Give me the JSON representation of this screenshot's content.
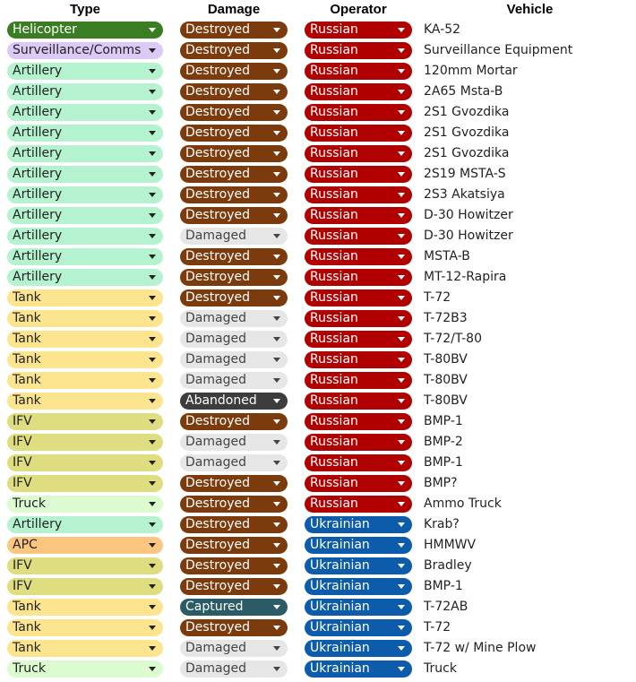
{
  "headers": {
    "type": "Type",
    "damage": "Damage",
    "operator": "Operator",
    "vehicle": "Vehicle"
  },
  "colors": {
    "type": {
      "Helicopter": {
        "bg": "#3a7d23",
        "fg": "#ffffff"
      },
      "Surveillance/Comms": {
        "bg": "#dbc9f6",
        "fg": "#222222"
      },
      "Artillery": {
        "bg": "#b5f3d0",
        "fg": "#222222"
      },
      "Tank": {
        "bg": "#fde58f",
        "fg": "#222222"
      },
      "IFV": {
        "bg": "#dede80",
        "fg": "#222222"
      },
      "Truck": {
        "bg": "#dcfbd0",
        "fg": "#222222"
      },
      "APC": {
        "bg": "#fbc67f",
        "fg": "#222222"
      }
    },
    "damage": {
      "Destroyed": {
        "bg": "#7b3b0c",
        "fg": "#ffffff"
      },
      "Damaged": {
        "bg": "#e6e6e6",
        "fg": "#444444"
      },
      "Abandoned": {
        "bg": "#3d3d3d",
        "fg": "#ffffff"
      },
      "Captured": {
        "bg": "#2a5b66",
        "fg": "#ffffff"
      }
    },
    "operator": {
      "Russian": {
        "bg": "#b00000",
        "fg": "#ffffff"
      },
      "Ukrainian": {
        "bg": "#0d5cab",
        "fg": "#ffffff"
      }
    }
  },
  "rows": [
    {
      "type": "Helicopter",
      "damage": "Destroyed",
      "operator": "Russian",
      "vehicle": "KA-52"
    },
    {
      "type": "Surveillance/Comms",
      "damage": "Destroyed",
      "operator": "Russian",
      "vehicle": "Surveillance Equipment"
    },
    {
      "type": "Artillery",
      "damage": "Destroyed",
      "operator": "Russian",
      "vehicle": "120mm Mortar"
    },
    {
      "type": "Artillery",
      "damage": "Destroyed",
      "operator": "Russian",
      "vehicle": "2A65 Msta-B"
    },
    {
      "type": "Artillery",
      "damage": "Destroyed",
      "operator": "Russian",
      "vehicle": "2S1 Gvozdika"
    },
    {
      "type": "Artillery",
      "damage": "Destroyed",
      "operator": "Russian",
      "vehicle": "2S1 Gvozdika"
    },
    {
      "type": "Artillery",
      "damage": "Destroyed",
      "operator": "Russian",
      "vehicle": "2S1 Gvozdika"
    },
    {
      "type": "Artillery",
      "damage": "Destroyed",
      "operator": "Russian",
      "vehicle": "2S19 MSTA-S"
    },
    {
      "type": "Artillery",
      "damage": "Destroyed",
      "operator": "Russian",
      "vehicle": "2S3 Akatsiya"
    },
    {
      "type": "Artillery",
      "damage": "Destroyed",
      "operator": "Russian",
      "vehicle": "D-30 Howitzer"
    },
    {
      "type": "Artillery",
      "damage": "Damaged",
      "operator": "Russian",
      "vehicle": "D-30 Howitzer"
    },
    {
      "type": "Artillery",
      "damage": "Destroyed",
      "operator": "Russian",
      "vehicle": "MSTA-B"
    },
    {
      "type": "Artillery",
      "damage": "Destroyed",
      "operator": "Russian",
      "vehicle": "MT-12-Rapira"
    },
    {
      "type": "Tank",
      "damage": "Destroyed",
      "operator": "Russian",
      "vehicle": "T-72"
    },
    {
      "type": "Tank",
      "damage": "Damaged",
      "operator": "Russian",
      "vehicle": "T-72B3"
    },
    {
      "type": "Tank",
      "damage": "Damaged",
      "operator": "Russian",
      "vehicle": "T-72/T-80"
    },
    {
      "type": "Tank",
      "damage": "Damaged",
      "operator": "Russian",
      "vehicle": "T-80BV"
    },
    {
      "type": "Tank",
      "damage": "Damaged",
      "operator": "Russian",
      "vehicle": "T-80BV"
    },
    {
      "type": "Tank",
      "damage": "Abandoned",
      "operator": "Russian",
      "vehicle": "T-80BV"
    },
    {
      "type": "IFV",
      "damage": "Destroyed",
      "operator": "Russian",
      "vehicle": "BMP-1"
    },
    {
      "type": "IFV",
      "damage": "Damaged",
      "operator": "Russian",
      "vehicle": "BMP-2"
    },
    {
      "type": "IFV",
      "damage": "Damaged",
      "operator": "Russian",
      "vehicle": "BMP-1"
    },
    {
      "type": "IFV",
      "damage": "Destroyed",
      "operator": "Russian",
      "vehicle": "BMP?"
    },
    {
      "type": "Truck",
      "damage": "Destroyed",
      "operator": "Russian",
      "vehicle": "Ammo Truck"
    },
    {
      "type": "Artillery",
      "damage": "Destroyed",
      "operator": "Ukrainian",
      "vehicle": "Krab?"
    },
    {
      "type": "APC",
      "damage": "Destroyed",
      "operator": "Ukrainian",
      "vehicle": "HMMWV"
    },
    {
      "type": "IFV",
      "damage": "Destroyed",
      "operator": "Ukrainian",
      "vehicle": "Bradley"
    },
    {
      "type": "IFV",
      "damage": "Destroyed",
      "operator": "Ukrainian",
      "vehicle": "BMP-1"
    },
    {
      "type": "Tank",
      "damage": "Captured",
      "operator": "Ukrainian",
      "vehicle": "T-72AB"
    },
    {
      "type": "Tank",
      "damage": "Destroyed",
      "operator": "Ukrainian",
      "vehicle": "T-72"
    },
    {
      "type": "Tank",
      "damage": "Damaged",
      "operator": "Ukrainian",
      "vehicle": "T-72 w/ Mine Plow"
    },
    {
      "type": "Truck",
      "damage": "Damaged",
      "operator": "Ukrainian",
      "vehicle": "Truck"
    }
  ]
}
